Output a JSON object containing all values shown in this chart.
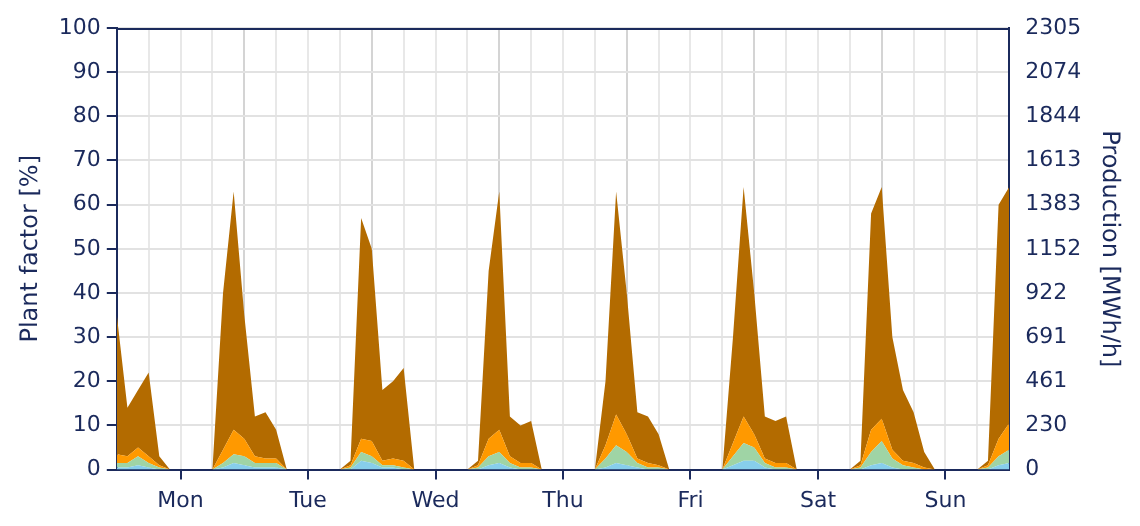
{
  "chart_data": {
    "type": "area",
    "stacked": true,
    "ylabel": "Plant factor [%]",
    "y2label": "Production [MWh/h]",
    "categories": [
      null,
      null,
      null,
      null,
      null,
      null,
      "Mon",
      null,
      null,
      null,
      null,
      null,
      null,
      null,
      null,
      null,
      null,
      null,
      "Tue",
      null,
      null,
      null,
      null,
      null,
      null,
      null,
      null,
      null,
      null,
      null,
      "Wed",
      null,
      null,
      null,
      null,
      null,
      null,
      null,
      null,
      null,
      null,
      null,
      "Thu",
      null,
      null,
      null,
      null,
      null,
      null,
      null,
      null,
      null,
      null,
      null,
      "Fri",
      null,
      null,
      null,
      null,
      null,
      null,
      null,
      null,
      null,
      null,
      null,
      "Sat",
      null,
      null,
      null,
      null,
      null,
      null,
      null,
      null,
      null,
      null,
      null,
      "Sun",
      null,
      null,
      null,
      null,
      null,
      null
    ],
    "series": [
      {
        "color": "#87ceeb",
        "values": [
          0.5,
          0.5,
          1,
          0.5,
          0,
          0,
          0,
          0,
          0,
          0,
          0.5,
          1.5,
          1,
          0.5,
          0.5,
          0.5,
          0,
          0,
          0,
          0,
          0,
          0,
          0,
          2,
          1.5,
          0.5,
          0.5,
          0,
          0,
          0,
          0,
          0,
          0,
          0,
          0,
          1,
          1.5,
          0.5,
          0,
          0,
          0,
          0,
          0,
          0,
          0,
          0,
          0.5,
          1.5,
          1,
          0.5,
          0,
          0,
          0,
          0,
          0,
          0,
          0,
          0,
          1,
          2,
          2,
          0.5,
          0,
          0,
          0,
          0,
          0,
          0,
          0,
          0,
          0,
          1,
          1.5,
          0.5,
          0,
          0,
          0,
          0,
          0,
          0,
          0,
          0,
          0,
          1,
          1.5
        ]
      },
      {
        "color": "#9fd4a5",
        "values": [
          1,
          1,
          2,
          1,
          0.5,
          0,
          0,
          0,
          0,
          0,
          1,
          2,
          2,
          1,
          1,
          1,
          0,
          0,
          0,
          0,
          0,
          0,
          0.5,
          2,
          1.5,
          0.5,
          0.5,
          0.5,
          0,
          0,
          0,
          0,
          0,
          0,
          0.5,
          2,
          2.5,
          1,
          0.5,
          0.5,
          0,
          0,
          0,
          0,
          0,
          0,
          2,
          4,
          3,
          1,
          0.5,
          0.5,
          0,
          0,
          0,
          0,
          0,
          0,
          2,
          4,
          3,
          1,
          0.5,
          0.5,
          0,
          0,
          0,
          0,
          0,
          0,
          0.5,
          3,
          5,
          2,
          1,
          0.5,
          0,
          0,
          0,
          0,
          0,
          0,
          0.5,
          2,
          3
        ]
      },
      {
        "color": "#ff9900",
        "values": [
          2,
          1.5,
          2,
          1.5,
          0.5,
          0,
          0,
          0,
          0,
          0,
          3,
          5.5,
          4,
          1.5,
          1,
          1,
          0,
          0,
          0,
          0,
          0,
          0,
          0.5,
          3,
          3.5,
          1,
          1.5,
          1.5,
          0,
          0,
          0,
          0,
          0,
          0,
          0.5,
          4,
          5,
          1.5,
          1,
          1,
          0,
          0,
          0,
          0,
          0,
          0,
          3,
          7,
          4,
          1,
          1,
          0.5,
          0,
          0,
          0,
          0,
          0,
          0,
          3,
          6,
          3,
          1,
          1,
          1,
          0,
          0,
          0,
          0,
          0,
          0,
          0.5,
          5,
          5,
          2,
          1,
          1,
          0.5,
          0,
          0,
          0,
          0,
          0,
          0.5,
          4,
          6
        ]
      },
      {
        "color": "#b36b00",
        "values": [
          31.5,
          11,
          13,
          19,
          2,
          0,
          0,
          0,
          0,
          0,
          35.5,
          54,
          28,
          9,
          10.5,
          6.5,
          0,
          0,
          0,
          0,
          0,
          0,
          1,
          50,
          43.5,
          16,
          17.5,
          21,
          0,
          0,
          0,
          0,
          0,
          0,
          1,
          38,
          54,
          9,
          8.5,
          9.5,
          0,
          0,
          0,
          0,
          0,
          0,
          14.5,
          50.5,
          32,
          10.5,
          10.5,
          7,
          0,
          0,
          0,
          0,
          0,
          0,
          24,
          52,
          32,
          9.5,
          9.5,
          10.5,
          0,
          0,
          0,
          0,
          0,
          0,
          1,
          49,
          52.5,
          25.5,
          16,
          11.5,
          3.5,
          0,
          0,
          0,
          0,
          0,
          1,
          53,
          53.5
        ]
      }
    ],
    "ylim": [
      0,
      100
    ],
    "yticks": [
      0,
      10,
      20,
      30,
      40,
      50,
      60,
      70,
      80,
      90,
      100
    ],
    "y2lim": [
      0,
      2305
    ],
    "y2ticks": [
      0,
      230,
      461,
      691,
      922,
      1152,
      1383,
      1613,
      1844,
      2074,
      2305
    ],
    "grid": true,
    "legend": false
  }
}
